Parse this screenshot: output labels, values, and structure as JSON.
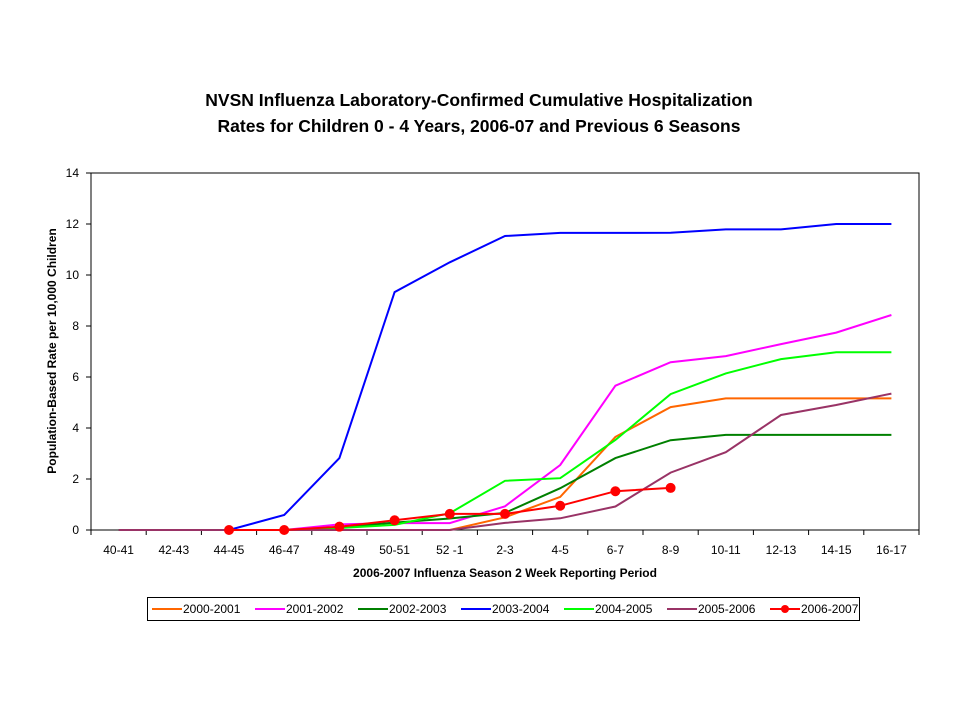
{
  "chart_data": {
    "type": "line",
    "title": "NVSN Influenza Laboratory-Confirmed Cumulative Hospitalization",
    "subtitle": "Rates for Children 0 - 4 Years, 2006-07 and Previous 6 Seasons",
    "xlabel": "2006-2007 Influenza Season 2 Week Reporting Period",
    "ylabel": "Population-Based Rate per 10,000 Children",
    "ylim": [
      0,
      14
    ],
    "yticks": [
      0,
      2,
      4,
      6,
      8,
      10,
      12,
      14
    ],
    "grid": false,
    "legend_position": "bottom",
    "categories": [
      "40-41",
      "42-43",
      "44-45",
      "46-47",
      "48-49",
      "50-51",
      "52 -1",
      "2-3",
      "4-5",
      "6-7",
      "8-9",
      "10-11",
      "12-13",
      "14-15",
      "16-17"
    ],
    "series": [
      {
        "name": "2000-2001",
        "color": "#FF6600",
        "marker": false,
        "values": [
          0,
          0,
          0,
          0,
          0,
          0,
          0,
          0.5,
          1.3,
          3.65,
          4.82,
          5.16,
          5.16,
          5.16,
          5.16
        ]
      },
      {
        "name": "2001-2002",
        "color": "#FF00FF",
        "marker": false,
        "values": [
          0,
          0,
          0,
          0,
          0.22,
          0.27,
          0.27,
          0.93,
          2.55,
          5.66,
          6.58,
          6.82,
          7.29,
          7.74,
          8.43
        ]
      },
      {
        "name": "2002-2003",
        "color": "#008000",
        "marker": false,
        "values": [
          0,
          0,
          0,
          0,
          0.1,
          0.29,
          0.45,
          0.67,
          1.64,
          2.82,
          3.52,
          3.73,
          3.73,
          3.73,
          3.73
        ]
      },
      {
        "name": "2003-2004",
        "color": "#0000FF",
        "marker": false,
        "values": [
          0,
          0,
          0,
          0.59,
          2.82,
          9.33,
          10.5,
          11.53,
          11.65,
          11.65,
          11.66,
          11.79,
          11.79,
          12.0,
          12.0
        ]
      },
      {
        "name": "2004-2005",
        "color": "#00FF00",
        "marker": false,
        "values": [
          0,
          0,
          0,
          0,
          0.08,
          0.2,
          0.66,
          1.93,
          2.03,
          3.53,
          5.33,
          6.14,
          6.7,
          6.97,
          6.97
        ]
      },
      {
        "name": "2005-2006",
        "color": "#993366",
        "marker": false,
        "values": [
          0,
          0,
          0,
          0,
          0,
          0,
          0,
          0.28,
          0.46,
          0.92,
          2.25,
          3.05,
          4.51,
          4.9,
          5.35
        ]
      },
      {
        "name": "2006-2007",
        "color": "#FF0000",
        "marker": true,
        "values": [
          null,
          null,
          0,
          0,
          0.13,
          0.38,
          0.63,
          0.63,
          0.95,
          1.52,
          1.65,
          null,
          null,
          null,
          null
        ]
      }
    ]
  }
}
